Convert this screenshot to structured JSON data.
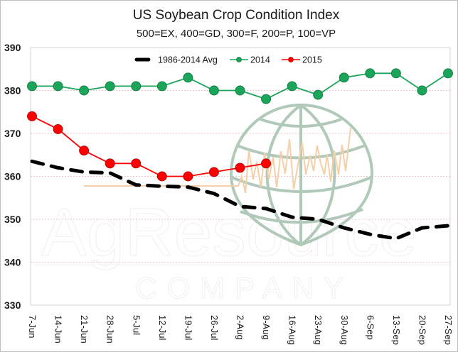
{
  "chart_data": {
    "type": "line",
    "title": "US Soybean Crop Condition Index",
    "subtitle": "500=EX, 400=GD, 300=F, 200=P, 100=VP",
    "xlabel": "",
    "ylabel": "",
    "ylim": [
      330,
      390
    ],
    "yticks": [
      390,
      380,
      370,
      360,
      350,
      340,
      330
    ],
    "grid": true,
    "legend_position": "top-center",
    "categories": [
      "7-Jun",
      "14-Jun",
      "21-Jun",
      "28-Jun",
      "5-Jul",
      "12-Jul",
      "19-Jul",
      "26-Jul",
      "2-Aug",
      "9-Aug",
      "16-Aug",
      "23-Aug",
      "30-Aug",
      "6-Sep",
      "13-Sep",
      "20-Sep",
      "27-Sep"
    ],
    "series": [
      {
        "name": "1986-2014 Avg",
        "color": "#000000",
        "style": "dashed",
        "markers": false,
        "values": [
          363.5,
          362,
          361,
          360.8,
          358,
          357.7,
          357.5,
          356,
          353,
          352.5,
          350.5,
          350,
          348,
          346.5,
          345.5,
          348,
          348.5
        ]
      },
      {
        "name": "2014",
        "color": "#1aa55a",
        "style": "solid",
        "markers": true,
        "values": [
          381,
          381,
          380,
          381,
          381,
          381,
          383,
          380,
          380,
          378,
          381,
          379,
          383,
          384,
          384,
          380,
          384
        ]
      },
      {
        "name": "2015",
        "color": "#ff0000",
        "style": "solid",
        "markers": true,
        "values": [
          374,
          371,
          366,
          363,
          363,
          360,
          360,
          361,
          362,
          363,
          null,
          null,
          null,
          null,
          null,
          null,
          null
        ]
      }
    ]
  },
  "watermark": {
    "name_text": "AgResource",
    "sub_text": "COMPANY"
  }
}
